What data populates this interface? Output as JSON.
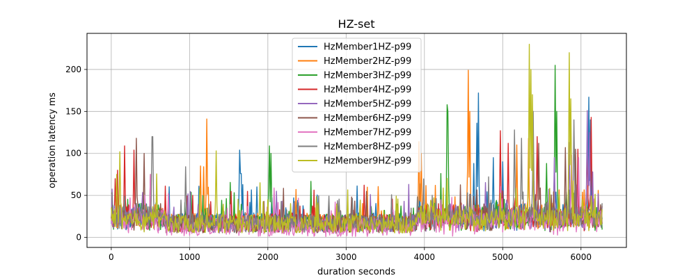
{
  "chart_data": {
    "type": "line",
    "title": "HZ-set",
    "xlabel": "duration seconds",
    "ylabel": "operation latency ms",
    "xlim": [
      -310,
      6580
    ],
    "ylim": [
      -12,
      243
    ],
    "xticks": [
      0,
      1000,
      2000,
      3000,
      4000,
      5000,
      6000
    ],
    "yticks": [
      0,
      50,
      100,
      150,
      200
    ],
    "grid": true,
    "legend_position": "top-center",
    "duration_end": 6270,
    "series": [
      {
        "name": "HzMember1HZ-p99",
        "color": "#1f77b4",
        "baseline": 18,
        "spikes": [
          [
            1640,
            104
          ],
          [
            1655,
            76
          ],
          [
            4630,
            88
          ],
          [
            4690,
            172
          ],
          [
            4670,
            136
          ],
          [
            4880,
            95
          ],
          [
            5000,
            90
          ],
          [
            6100,
            167
          ],
          [
            6120,
            140
          ]
        ]
      },
      {
        "name": "HzMember2HZ-p99",
        "color": "#ff7f0e",
        "baseline": 18,
        "spikes": [
          [
            1220,
            141
          ],
          [
            1140,
            85
          ],
          [
            1180,
            84
          ],
          [
            3930,
            114
          ],
          [
            3960,
            100
          ],
          [
            4560,
            199
          ],
          [
            4580,
            150
          ],
          [
            5180,
            110
          ],
          [
            5330,
            118
          ]
        ]
      },
      {
        "name": "HzMember3HZ-p99",
        "color": "#2ca02c",
        "baseline": 17,
        "spikes": [
          [
            2020,
            109
          ],
          [
            2040,
            100
          ],
          [
            2010,
            60
          ],
          [
            4290,
            158
          ],
          [
            4300,
            150
          ],
          [
            5670,
            205
          ],
          [
            5690,
            150
          ],
          [
            5560,
            88
          ]
        ]
      },
      {
        "name": "HzMember4HZ-p99",
        "color": "#d62728",
        "baseline": 17,
        "spikes": [
          [
            170,
            109
          ],
          [
            290,
            104
          ],
          [
            80,
            80
          ],
          [
            4970,
            127
          ],
          [
            5070,
            112
          ],
          [
            5440,
            120
          ],
          [
            5960,
            105
          ],
          [
            6130,
            143
          ],
          [
            6080,
            120
          ]
        ]
      },
      {
        "name": "HzMember5HZ-p99",
        "color": "#9467bd",
        "baseline": 16,
        "spikes": [
          [
            2080,
            57
          ],
          [
            2110,
            55
          ],
          [
            6080,
            151
          ],
          [
            6110,
            125
          ],
          [
            5850,
            113
          ],
          [
            5660,
            95
          ]
        ]
      },
      {
        "name": "HzMember6HZ-p99",
        "color": "#8c564b",
        "baseline": 16,
        "spikes": [
          [
            320,
            118
          ],
          [
            420,
            100
          ],
          [
            500,
            75
          ],
          [
            5460,
            112
          ],
          [
            5800,
            107
          ],
          [
            5930,
            105
          ]
        ]
      },
      {
        "name": "HzMember7HZ-p99",
        "color": "#e377c2",
        "baseline": 12,
        "spikes": [
          [
            500,
            75
          ],
          [
            730,
            52
          ],
          [
            4100,
            45
          ],
          [
            5880,
            98
          ],
          [
            5970,
            95
          ]
        ]
      },
      {
        "name": "HzMember8HZ-p99",
        "color": "#7f7f7f",
        "baseline": 17,
        "spikes": [
          [
            525,
            120
          ],
          [
            950,
            84
          ],
          [
            5150,
            128
          ],
          [
            5240,
            118
          ],
          [
            5390,
            150
          ],
          [
            5910,
            140
          ]
        ]
      },
      {
        "name": "HzMember9HZ-p99",
        "color": "#bcbd22",
        "baseline": 16,
        "spikes": [
          [
            70,
            75
          ],
          [
            110,
            102
          ],
          [
            1340,
            103
          ],
          [
            5340,
            230
          ],
          [
            5360,
            200
          ],
          [
            5380,
            170
          ],
          [
            5850,
            220
          ],
          [
            5870,
            165
          ],
          [
            1900,
            65
          ]
        ]
      }
    ]
  }
}
